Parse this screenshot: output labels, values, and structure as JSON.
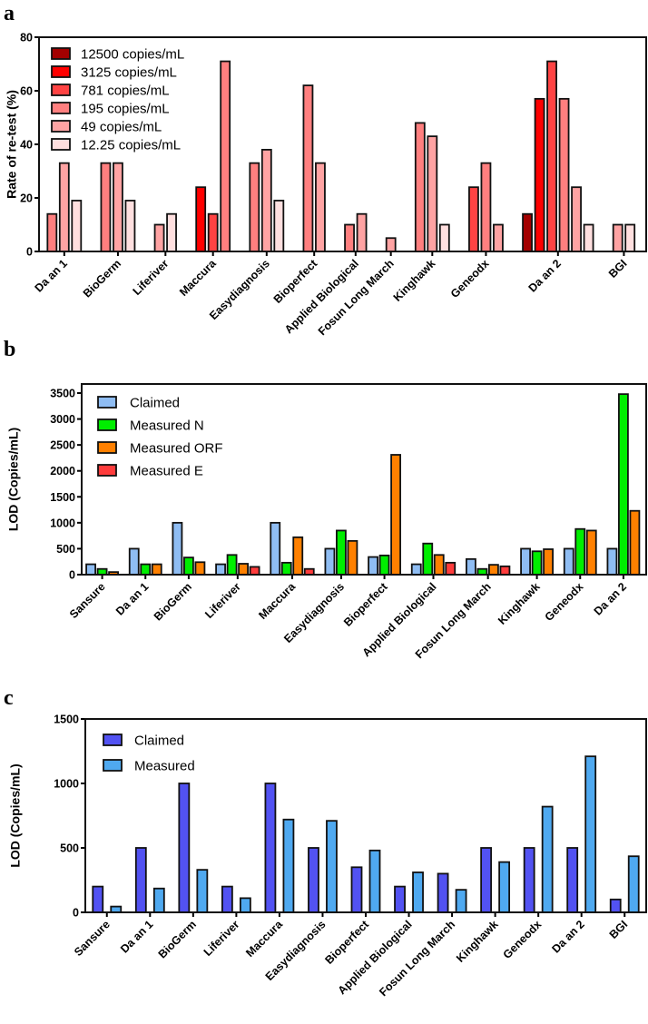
{
  "chart_data": [
    {
      "panel_label": "a",
      "type": "bar",
      "title": "",
      "xlabel": "",
      "ylabel": "Rate of re-test (%)",
      "ylim": [
        0,
        80
      ],
      "yticks": [
        0,
        20,
        40,
        60,
        80
      ],
      "legend_placement": "top-left",
      "categories": [
        "Da an 1",
        "BioGerm",
        "Liferiver",
        "Maccura",
        "Easydiagnosis",
        "Bioperfect",
        "Applied Biological",
        "Fosun Long March",
        "Kinghawk",
        "Geneodx",
        "Da an 2",
        "BGI"
      ],
      "series": [
        {
          "name": "12500 copies/mL",
          "color": "#a30000",
          "values": [
            null,
            null,
            null,
            null,
            null,
            null,
            null,
            null,
            null,
            null,
            14,
            null
          ]
        },
        {
          "name": "3125 copies/mL",
          "color": "#ff0000",
          "values": [
            null,
            null,
            null,
            24,
            null,
            null,
            null,
            null,
            null,
            null,
            57,
            null
          ]
        },
        {
          "name": "781 copies/mL",
          "color": "#ff4343",
          "values": [
            null,
            null,
            null,
            14,
            null,
            null,
            null,
            null,
            null,
            24,
            71,
            null
          ]
        },
        {
          "name": "195 copies/mL",
          "color": "#ff7f7f",
          "values": [
            14,
            33,
            null,
            71,
            33,
            62,
            10,
            null,
            48,
            33,
            57,
            null
          ]
        },
        {
          "name": "49 copies/mL",
          "color": "#ffa3a3",
          "values": [
            33,
            33,
            10,
            null,
            38,
            33,
            14,
            5,
            43,
            10,
            24,
            10
          ]
        },
        {
          "name": "12.25 copies/mL",
          "color": "#ffdfdf",
          "values": [
            19,
            19,
            14,
            null,
            19,
            null,
            null,
            null,
            10,
            null,
            10,
            10
          ]
        }
      ]
    },
    {
      "panel_label": "b",
      "type": "bar",
      "title": "",
      "xlabel": "",
      "ylabel": "LOD (Copies/mL)",
      "ylim": [
        0,
        3500
      ],
      "yticks": [
        0,
        500,
        1000,
        1500,
        2000,
        2500,
        3000,
        3500
      ],
      "legend_placement": "top-left",
      "categories": [
        "Sansure",
        "Da an 1",
        "BioGerm",
        "Liferiver",
        "Maccura",
        "Easydiagnosis",
        "Bioperfect",
        "Applied Biological",
        "Fosun Long March",
        "Kinghawk",
        "Geneodx",
        "Da an 2"
      ],
      "series": [
        {
          "name": "Claimed",
          "color": "#8fbdf3",
          "values": [
            200,
            500,
            1000,
            200,
            1000,
            500,
            340,
            200,
            300,
            500,
            500,
            500
          ]
        },
        {
          "name": "Measured N",
          "color": "#00ee00",
          "values": [
            110,
            200,
            330,
            380,
            230,
            850,
            370,
            600,
            110,
            450,
            880,
            3480
          ]
        },
        {
          "name": "Measured ORF",
          "color": "#ff8000",
          "values": [
            50,
            200,
            240,
            210,
            720,
            650,
            2310,
            380,
            190,
            490,
            850,
            1230
          ]
        },
        {
          "name": "Measured E",
          "color": "#ff3c3c",
          "values": [
            null,
            null,
            null,
            150,
            110,
            null,
            null,
            230,
            160,
            null,
            null,
            null
          ]
        }
      ]
    },
    {
      "panel_label": "c",
      "type": "bar",
      "title": "",
      "xlabel": "",
      "ylabel": "LOD (Copies/mL)",
      "ylim": [
        0,
        1500
      ],
      "yticks": [
        0,
        500,
        1000,
        1500
      ],
      "legend_placement": "top-left",
      "categories": [
        "Sansure",
        "Da an 1",
        "BioGerm",
        "Liferiver",
        "Maccura",
        "Easydiagnosis",
        "Bioperfect",
        "Applied Biological",
        "Fosun Long March",
        "Kinghawk",
        "Geneodx",
        "Da an 2",
        "BGI"
      ],
      "series": [
        {
          "name": "Claimed",
          "color": "#5252f2",
          "values": [
            200,
            500,
            1000,
            200,
            1000,
            500,
            350,
            200,
            300,
            500,
            500,
            500,
            100
          ]
        },
        {
          "name": "Measured",
          "color": "#4fa9f0",
          "values": [
            45,
            185,
            330,
            110,
            720,
            710,
            480,
            310,
            175,
            390,
            820,
            1210,
            435
          ]
        }
      ]
    }
  ]
}
